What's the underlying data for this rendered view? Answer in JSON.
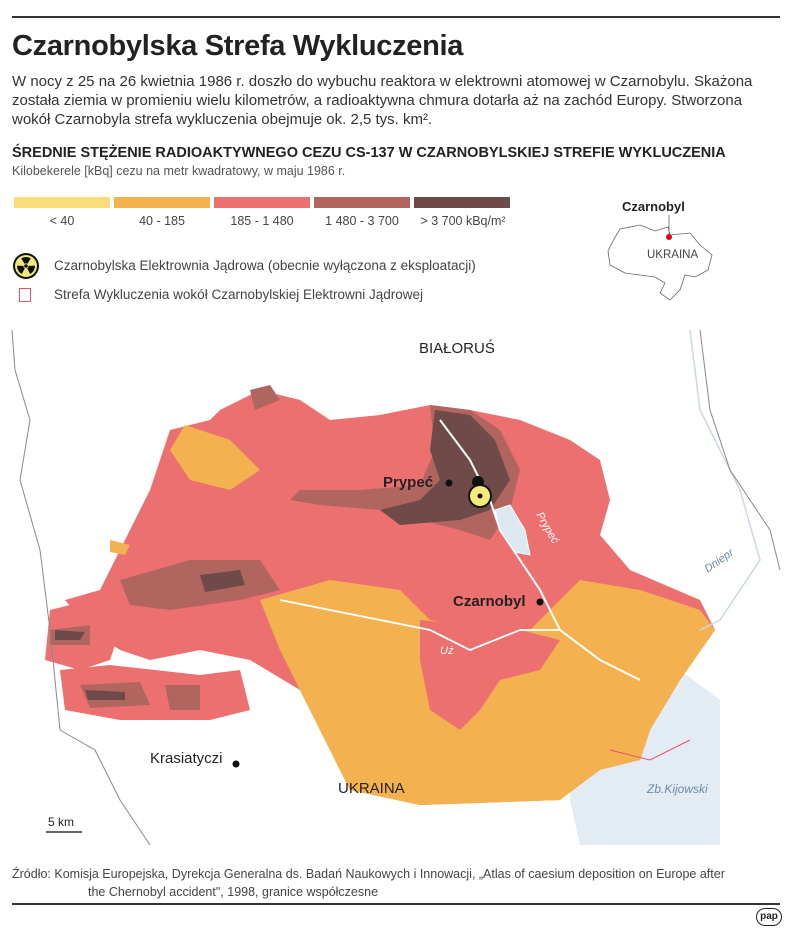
{
  "title": "Czarnobylska Strefa Wykluczenia",
  "intro": "W nocy z 25 na 26 kwietnia 1986 r. doszło do wybuchu reaktora w elektrowni atomowej w Czarnobylu. Skażona została ziemia w promieniu wielu kilometrów, a radioaktywna chmura dotarła aż na zachód Europy. Stworzona wokół Czarnobyla strefa wykluczenia obejmuje ok. 2,5 tys. km².",
  "legend": {
    "title": "ŚREDNIE STĘŻENIE RADIOAKTYWNEGO CEZU CS-137 W CZARNOBYLSKIEJ STREFIE WYKLUCZENIA",
    "unit": "Kilobekerele [kBq] cezu na metr kwadratowy, w maju 1986 r.",
    "classes": [
      {
        "label": "< 40",
        "color": "#fbdc7a"
      },
      {
        "label": "40 - 185",
        "color": "#f3b24f"
      },
      {
        "label": "185 - 1 480",
        "color": "#ec7070"
      },
      {
        "label": "1 480 - 3 700",
        "color": "#b0655e"
      },
      {
        "label": "> 3 700 kBq/m²",
        "color": "#6e4b48"
      }
    ],
    "plant": {
      "label": "Czarnobylska Elektrownia Jądrowa (obecnie wyłączona z eksploatacji)",
      "icon": "radiation-icon"
    },
    "zone": {
      "label": "Strefa Wykluczenia wokół Czarnobylskiej Elektrowni Jądrowej",
      "color": "#e8506a"
    }
  },
  "inset": {
    "city": "Czarnobyl",
    "country": "UKRAINA"
  },
  "map": {
    "belarus": "BIAŁORUŚ",
    "ukraine": "UKRAINA",
    "pripyat": "Prypeć",
    "chernobyl": "Czarnobyl",
    "krasiatyczi": "Krasiatyczi",
    "river_pripyat": "Prypeć",
    "river_dnieper": "Dniepr",
    "river_uzh": "Uż",
    "reservoir": "Zb.Kijowski",
    "scale": "5 km"
  },
  "source": {
    "line1": "Źródło: Komisja Europejska, Dyrekcja Generalna ds. Badań Naukowych i Innowacji, „Atlas of caesium deposition on Europe after",
    "line2": "the Chernobyl accident\", 1998, granice współczesne"
  },
  "logo": "pap"
}
